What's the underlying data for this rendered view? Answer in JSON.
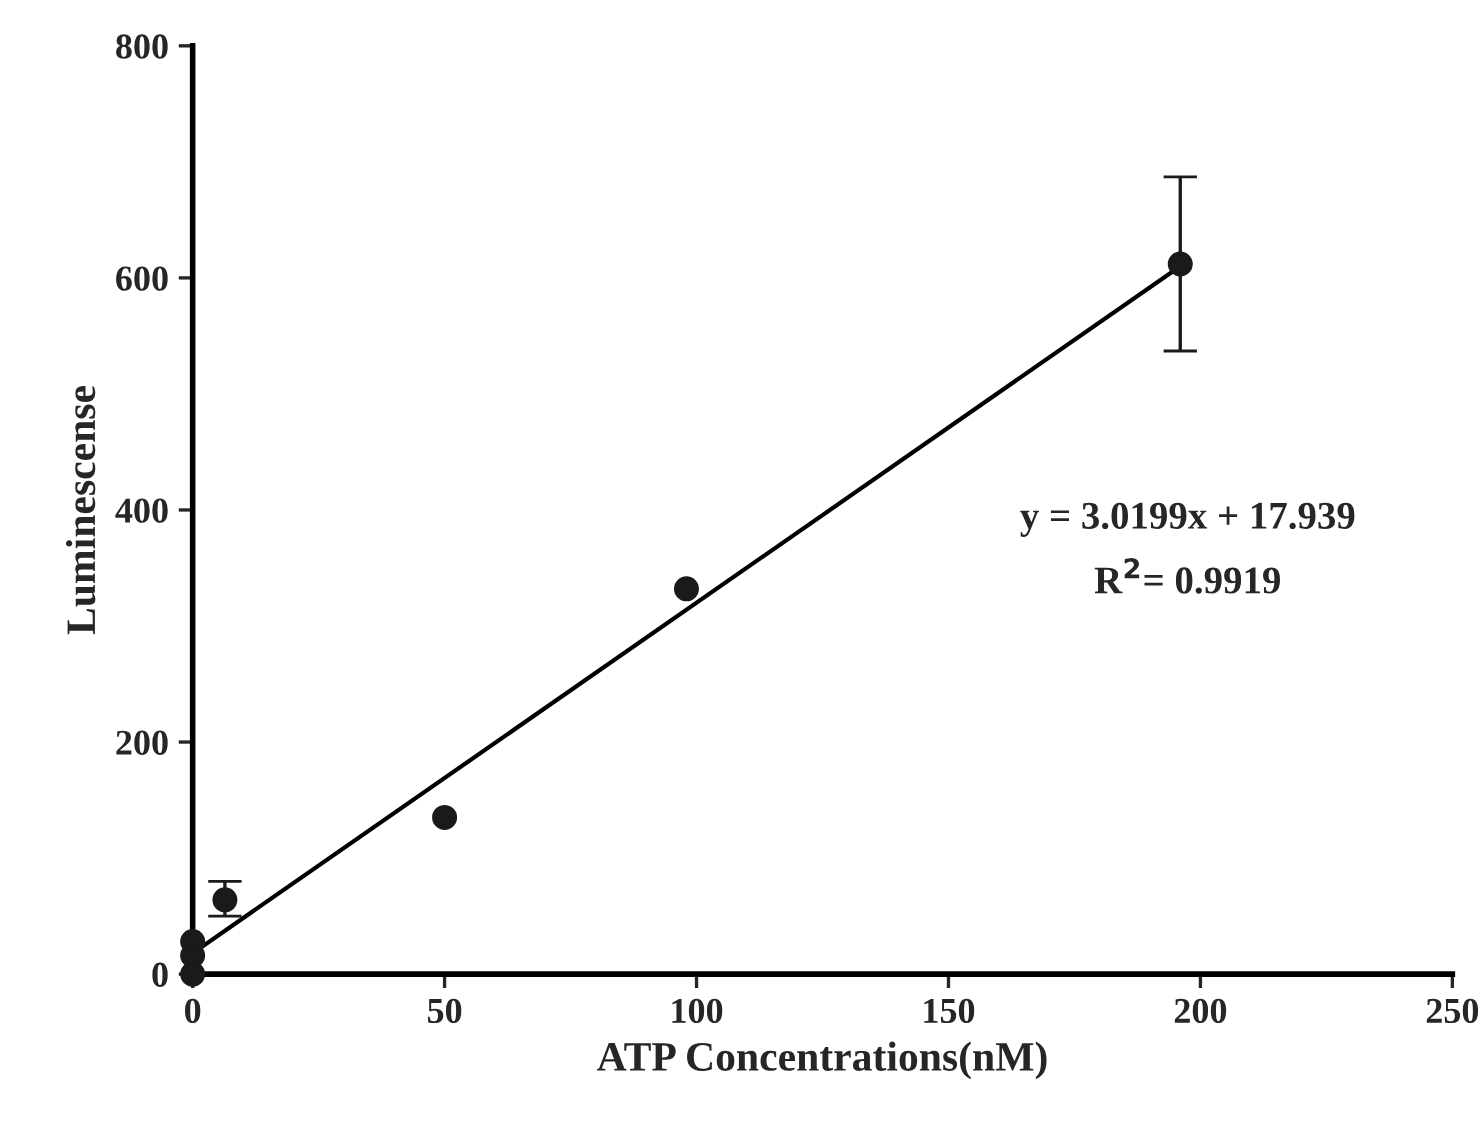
{
  "chart_data": {
    "type": "scatter",
    "xlabel": "ATP Concentrations(nM)",
    "ylabel": "Luminescense",
    "xlim": [
      0,
      250
    ],
    "xticks": [
      0,
      50,
      100,
      150,
      200,
      250
    ],
    "ylim": [
      0,
      800
    ],
    "yticks": [
      0,
      200,
      400,
      600,
      800
    ],
    "grid": false,
    "series": [
      {
        "color": "#1a1a1a",
        "marker": "circle",
        "x": [
          0,
          0,
          0,
          6.4,
          50,
          98,
          196
        ],
        "values": [
          0,
          16,
          28,
          64,
          135,
          332,
          612
        ],
        "errors": [
          null,
          null,
          null,
          [
            50,
            80
          ],
          null,
          null,
          [
            537,
            687
          ]
        ]
      },
      {
        "type": "line",
        "color": "#000000",
        "x": [
          0,
          196
        ],
        "values": [
          18,
          610
        ]
      }
    ],
    "annotations": [
      "y = 3.0199x + 17.939",
      "R$^{2}$= 0.9919"
    ]
  }
}
